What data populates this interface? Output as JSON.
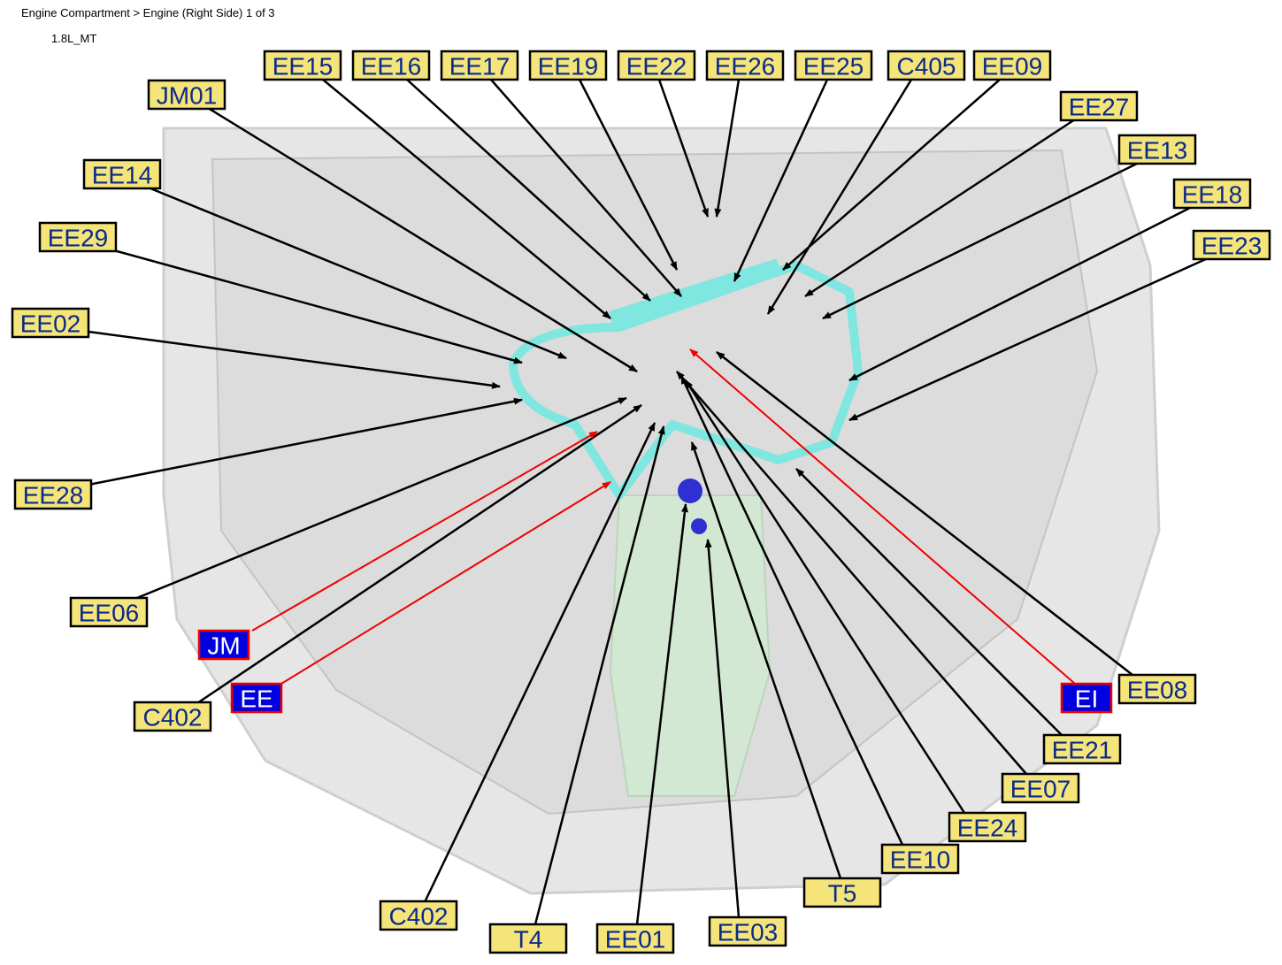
{
  "header": {
    "breadcrumb": "Engine Compartment > Engine (Right Side) 1 of 3",
    "variant": "1.8L_MT"
  },
  "connectors": [
    "EE15",
    "EE16",
    "EE17",
    "EE19",
    "EE22",
    "EE26",
    "EE25",
    "C405",
    "EE09",
    "EE27",
    "EE13",
    "EE18",
    "EE23",
    "JM01",
    "EE14",
    "EE29",
    "EE02",
    "EE28",
    "EE06",
    "C402",
    "C402",
    "T4",
    "EE01",
    "EE03",
    "T5",
    "EE10",
    "EE24",
    "EE07",
    "EE21",
    "EE08"
  ],
  "harnesses": [
    "JM",
    "EE",
    "EI"
  ]
}
